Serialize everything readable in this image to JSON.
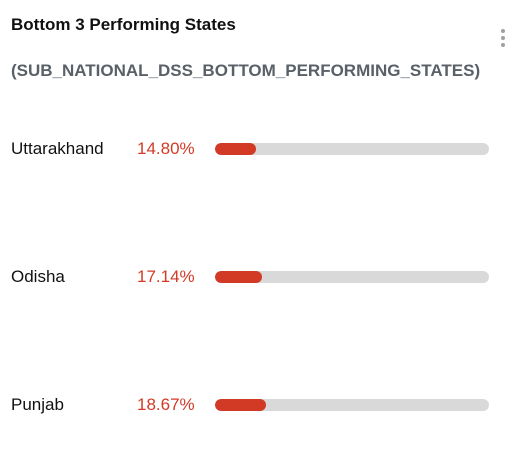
{
  "header": {
    "title": "Bottom 3 Performing States",
    "subtitle": "(SUB_NATIONAL_DSS_BOTTOM_PERFORMING_STATES)",
    "menu_icon": "more-vertical-icon"
  },
  "colors": {
    "accent": "#d23a26",
    "track": "#d9d9d9",
    "subtitle": "#5a6068"
  },
  "states": [
    {
      "name": "Uttarakhand",
      "percent_label": "14.80%",
      "value": 14.8
    },
    {
      "name": "Odisha",
      "percent_label": "17.14%",
      "value": 17.14
    },
    {
      "name": "Punjab",
      "percent_label": "18.67%",
      "value": 18.67
    }
  ]
}
